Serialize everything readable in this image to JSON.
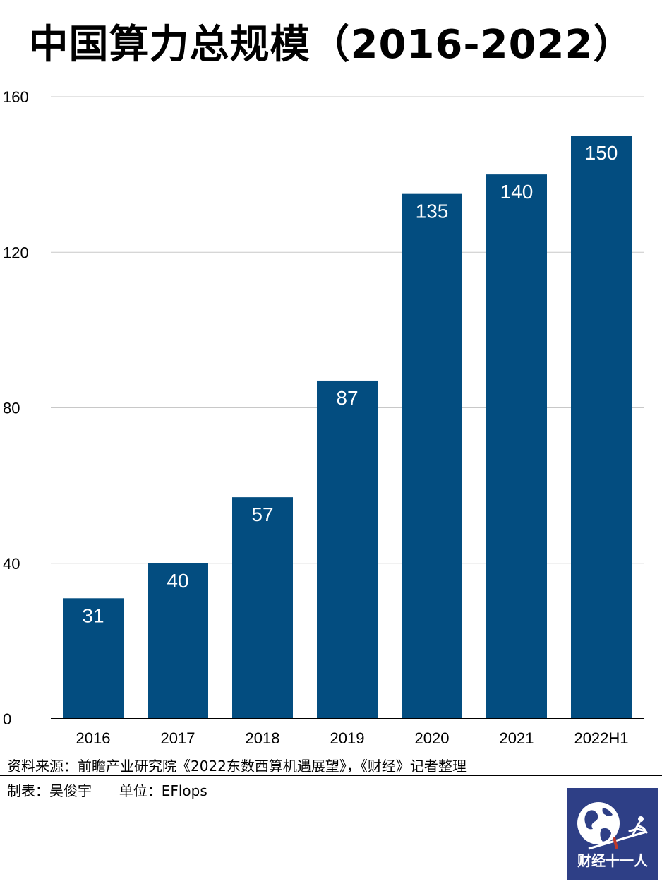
{
  "chart_data": {
    "type": "bar",
    "title": "中国算力总规模（2016-2022）",
    "categories": [
      "2016",
      "2017",
      "2018",
      "2019",
      "2020",
      "2021",
      "2022H1"
    ],
    "values": [
      31,
      40,
      57,
      87,
      135,
      140,
      150
    ],
    "ylim": [
      0,
      160
    ],
    "yticks": [
      "0",
      "40",
      "80",
      "120",
      "160"
    ],
    "grid": true,
    "bar_color": "#034d80",
    "label_color": "#ffffff"
  },
  "footer": {
    "source": "资料来源：前瞻产业研究院《2022东数西算机遇展望》，《财经》记者整理",
    "maker": "制表：吴俊宇",
    "unit": "单位：EFlops"
  },
  "logo": {
    "text": "财经十一人",
    "icon": "globe-runner-icon",
    "bg_color": "#2e3f86"
  }
}
